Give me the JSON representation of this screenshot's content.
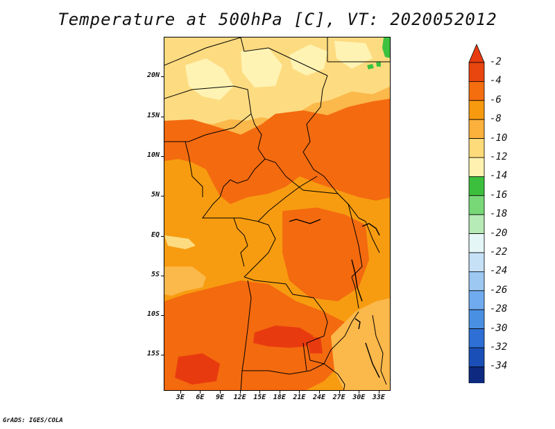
{
  "title": "Temperature at 500hPa [C], VT: 2020052012",
  "footer": "GrADS: IGES/COLA",
  "map": {
    "region": "Central Africa",
    "lat_labels": [
      "20N",
      "15N",
      "10N",
      "5N",
      "EQ",
      "5S",
      "10S",
      "15S"
    ],
    "lon_labels": [
      "3E",
      "6E",
      "9E",
      "12E",
      "15E",
      "18E",
      "21E",
      "24E",
      "27E",
      "30E",
      "33E"
    ],
    "lat_range": [
      -19.5,
      25
    ],
    "lon_range": [
      0.5,
      34.8
    ],
    "fill_colors": {
      "-2_0": "#e83a0f",
      "-4_-2": "#f46a0f",
      "-6_-4": "#f79c10",
      "-8_-6": "#fbb84b",
      "-10_-8": "#fddb81",
      "-12_-10": "#fff3b3",
      "-14_-12": "#3cc23f"
    }
  },
  "colorbar": {
    "labels": [
      "-2",
      "-4",
      "-6",
      "-8",
      "-10",
      "-12",
      "-14",
      "-16",
      "-18",
      "-20",
      "-22",
      "-24",
      "-26",
      "-28",
      "-30",
      "-32",
      "-34"
    ],
    "colors": [
      "#e8450f",
      "#f46d0e",
      "#f79a10",
      "#fbb13c",
      "#fddb7a",
      "#fff2b0",
      "#3cbf3c",
      "#78d878",
      "#b6eab6",
      "#e4f6f6",
      "#c6e0f6",
      "#9cc8f2",
      "#6fabee",
      "#4a90e2",
      "#2d6fd4",
      "#1a4fb8",
      "#0d2a80"
    ],
    "top_arrow_color": "#e83b0f",
    "bottom_arrow_color": "#e0e8fb"
  }
}
